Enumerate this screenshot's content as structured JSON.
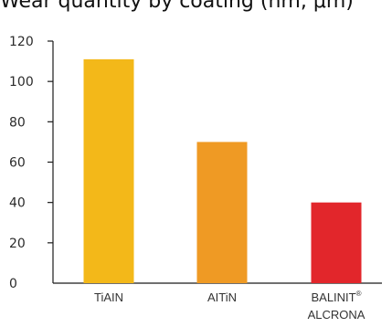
{
  "title": "Wear quantity by coating (nm, μm)",
  "chart_data": {
    "type": "bar",
    "title": "Wear quantity by coating (nm, μm)",
    "xlabel": "",
    "ylabel": "",
    "ylim": [
      0,
      120
    ],
    "yticks": [
      0,
      20,
      40,
      60,
      80,
      100,
      120
    ],
    "grid": false,
    "categories": [
      "TiAIN",
      "AITiN",
      "BALINIT® ALCRONA"
    ],
    "category_lines": [
      [
        "TiAIN"
      ],
      [
        "AITiN"
      ],
      [
        "BALINIT®",
        "ALCRONA"
      ]
    ],
    "values": [
      111,
      70,
      40
    ],
    "colors": [
      "#f3b819",
      "#ef9a24",
      "#e2262b"
    ]
  }
}
